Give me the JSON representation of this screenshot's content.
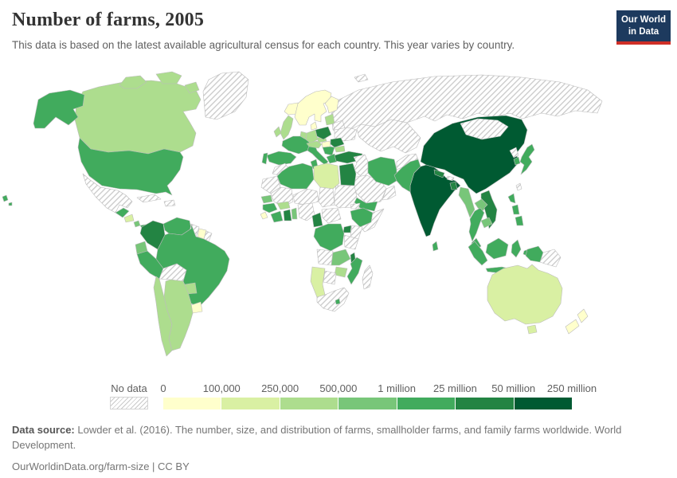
{
  "header": {
    "title": "Number of farms, 2005",
    "subtitle": "This data is based on the latest available agricultural census for each country. This year varies by country."
  },
  "logo": {
    "line1": "Our World",
    "line2": "in Data",
    "bg_color": "#1d3a5e",
    "accent_color": "#cf2f27"
  },
  "legend": {
    "no_data_label": "No data",
    "tick_labels": [
      "0",
      "100,000",
      "250,000",
      "500,000",
      "1 million",
      "25 million",
      "50 million",
      "250 million"
    ],
    "bin_colors": [
      "#ffffcc",
      "#d9f0a3",
      "#addd8e",
      "#78c679",
      "#41ab5d",
      "#238443",
      "#005a32"
    ]
  },
  "footer": {
    "source_label": "Data source:",
    "source_text": " Lowder et al. (2016). The number, size, and distribution of farms, smallholder farms, and family farms worldwide. World Development.",
    "license_line": "OurWorldinData.org/farm-size | CC BY"
  },
  "map": {
    "no_data_pattern": "diagonal-hatch",
    "border_color": "#bcbcbc",
    "region_bins": {
      "russia": "no-data",
      "kazakhstan-central-asia": "no-data",
      "mongolia": "no-data",
      "svalbard": "no-data",
      "greenland": "no-data",
      "mexico": "no-data",
      "cuba": "no-data",
      "hispaniola": "no-data",
      "guyana": "no-data",
      "french-guiana": "no-data",
      "bolivia": "no-data",
      "belarus": "no-data",
      "ukraine": "no-data",
      "morocco": "no-data",
      "western-sahara-mauritania": "no-data",
      "mali": "no-data",
      "niger": "no-data",
      "chad": "no-data",
      "sudan": "no-data",
      "nigeria": "no-data",
      "central-african-republic": "no-data",
      "eritrea": "no-data",
      "somalia": "no-data",
      "kenya": "no-data",
      "tanzania": "no-data",
      "angola": "no-data",
      "botswana": "no-data",
      "south-africa": "no-data",
      "madagascar": "no-data",
      "syria-iraq": "no-data",
      "saudi-arabia": "no-data",
      "oman": "no-data",
      "afghanistan": "no-data",
      "bhutan": "no-data",
      "north-korea": "no-data",
      "taiwan": "no-data",
      "papua-new-guinea": "no-data",
      "iceland": 0,
      "norway-sweden": 0,
      "finland": 0,
      "denmark": 0,
      "hungary": 0,
      "jordan-israel": 0,
      "suriname": 0,
      "uruguay": 0,
      "sierra-leone": 0,
      "new-zealand-north": 0,
      "new-zealand-south": 0,
      "libya": 1,
      "namibia": 1,
      "australia": 1,
      "tasmania": 1,
      "nicaragua": 1,
      "canada": 2,
      "arctic-islands-1": 2,
      "arctic-islands-2": 2,
      "arctic-islands-3": 2,
      "united-kingdom": 2,
      "ireland": 2,
      "germany": 2,
      "benelux": 2,
      "czech": 2,
      "austria-switzerland": 2,
      "baltics": 2,
      "bulgaria": 2,
      "burkina-faso": 2,
      "zimbabwe": 2,
      "paraguay": 2,
      "argentina": 2,
      "chile": 2,
      "ecuador": 3,
      "costa-rica": 3,
      "senegal": 3,
      "togo-benin": 3,
      "zambia": 3,
      "myanmar": 3,
      "laos": 3,
      "cambodia": 3,
      "united-states": 4,
      "alaska": 4,
      "hawaii-1": 4,
      "hawaii-2": 4,
      "guatemala": 4,
      "panama": 4,
      "venezuela": 4,
      "peru": 4,
      "brazil": 4,
      "france": 4,
      "spain": 4,
      "portugal": 4,
      "italy": 4,
      "sicily": 4,
      "balkans": 4,
      "greece": 4,
      "algeria": 4,
      "tunisia": 4,
      "guinea": 4,
      "cote-divoire": 4,
      "ethiopia": 4,
      "dr-congo": 4,
      "mozambique": 4,
      "lesotho": 4,
      "yemen": 4,
      "iran": 4,
      "pakistan": 4,
      "sri-lanka": 4,
      "south-korea": 4,
      "japan": 4,
      "thailand": 4,
      "malaysia": 4,
      "philippines": 4,
      "indonesia": 4,
      "west-papua": 4,
      "colombia": 5,
      "poland": 5,
      "romania": 5,
      "turkey": 5,
      "egypt": 5,
      "ghana": 5,
      "cameroon": 5,
      "uganda": 5,
      "malawi": 5,
      "nepal": 5,
      "bangladesh": 5,
      "vietnam": 5,
      "china": 6,
      "india": 6
    }
  },
  "chart_data": {
    "type": "choropleth_map",
    "title": "Number of farms, 2005",
    "unit": "farms",
    "legend_position": "bottom",
    "bin_thresholds": [
      0,
      100000,
      250000,
      500000,
      1000000,
      25000000,
      50000000,
      250000000
    ],
    "bin_labels": [
      "0–100,000",
      "100,000–250,000",
      "250,000–500,000",
      "500,000–1 million",
      "1–25 million",
      "25–50 million",
      "50–250 million"
    ],
    "countries": {
      "China": "50–250 million",
      "India": "50–250 million",
      "Colombia": "25–50 million",
      "Poland": "25–50 million",
      "Romania": "25–50 million",
      "Turkey": "25–50 million",
      "Egypt": "25–50 million",
      "Ghana": "25–50 million",
      "Cameroon": "25–50 million",
      "Uganda": "25–50 million",
      "Malawi": "25–50 million",
      "Nepal": "25–50 million",
      "Bangladesh": "25–50 million",
      "Vietnam": "25–50 million",
      "United States": "1–25 million",
      "Guatemala": "1–25 million",
      "Panama": "1–25 million",
      "Venezuela": "1–25 million",
      "Peru": "1–25 million",
      "Brazil": "1–25 million",
      "France": "1–25 million",
      "Spain": "1–25 million",
      "Portugal": "1–25 million",
      "Italy": "1–25 million",
      "Greece": "1–25 million",
      "Algeria": "1–25 million",
      "Tunisia": "1–25 million",
      "Guinea": "1–25 million",
      "Cote d'Ivoire": "1–25 million",
      "Ethiopia": "1–25 million",
      "DR Congo": "1–25 million",
      "Mozambique": "1–25 million",
      "Lesotho": "1–25 million",
      "Yemen": "1–25 million",
      "Iran": "1–25 million",
      "Pakistan": "1–25 million",
      "Sri Lanka": "1–25 million",
      "South Korea": "1–25 million",
      "Japan": "1–25 million",
      "Thailand": "1–25 million",
      "Malaysia": "1–25 million",
      "Philippines": "1–25 million",
      "Indonesia": "1–25 million",
      "Ecuador": "500,000–1 million",
      "Costa Rica": "500,000–1 million",
      "Senegal": "500,000–1 million",
      "Zambia": "500,000–1 million",
      "Myanmar": "500,000–1 million",
      "Laos": "500,000–1 million",
      "Cambodia": "500,000–1 million",
      "Canada": "250,000–500,000",
      "United Kingdom": "250,000–500,000",
      "Ireland": "250,000–500,000",
      "Germany": "250,000–500,000",
      "Bulgaria": "250,000–500,000",
      "Burkina Faso": "250,000–500,000",
      "Zimbabwe": "250,000–500,000",
      "Paraguay": "250,000–500,000",
      "Argentina": "250,000–500,000",
      "Chile": "250,000–500,000",
      "Libya": "100,000–250,000",
      "Namibia": "100,000–250,000",
      "Australia": "100,000–250,000",
      "Nicaragua": "100,000–250,000",
      "Iceland": "0–100,000",
      "Norway": "0–100,000",
      "Sweden": "0–100,000",
      "Finland": "0–100,000",
      "Denmark": "0–100,000",
      "Hungary": "0–100,000",
      "Jordan": "0–100,000",
      "Suriname": "0–100,000",
      "Uruguay": "0–100,000",
      "Sierra Leone": "0–100,000",
      "New Zealand": "0–100,000",
      "Russia": "No data",
      "Kazakhstan": "No data",
      "Mongolia": "No data",
      "Greenland": "No data",
      "Mexico": "No data",
      "Cuba": "No data",
      "Bolivia": "No data",
      "Guyana": "No data",
      "Belarus": "No data",
      "Ukraine": "No data",
      "Morocco": "No data",
      "Mauritania": "No data",
      "Mali": "No data",
      "Niger": "No data",
      "Chad": "No data",
      "Sudan": "No data",
      "Nigeria": "No data",
      "Somalia": "No data",
      "Kenya": "No data",
      "Tanzania": "No data",
      "Angola": "No data",
      "Botswana": "No data",
      "South Africa": "No data",
      "Madagascar": "No data",
      "Iraq": "No data",
      "Syria": "No data",
      "Saudi Arabia": "No data",
      "Oman": "No data",
      "Afghanistan": "No data",
      "North Korea": "No data",
      "Papua New Guinea": "No data"
    }
  }
}
